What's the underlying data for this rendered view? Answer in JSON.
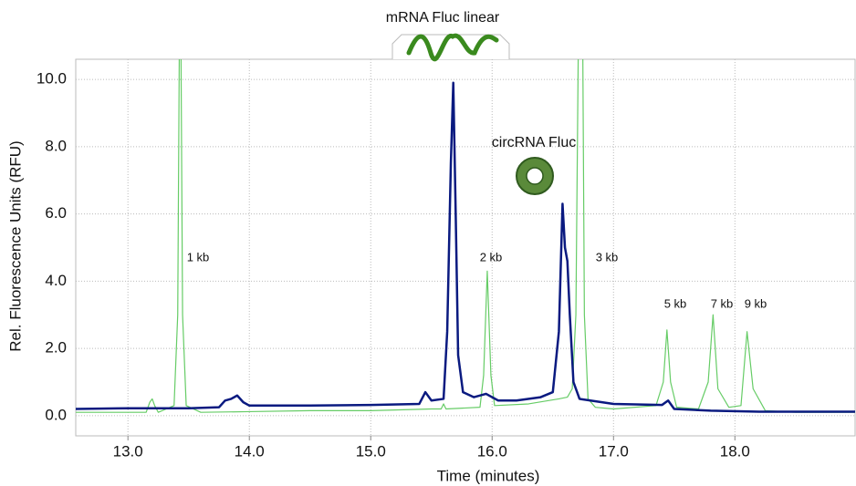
{
  "chart_data": {
    "type": "line",
    "xlabel": "Time (minutes)",
    "ylabel": "Rel. Fluorescence Units (RFU)",
    "xlim": [
      12.57,
      18.99
    ],
    "ylim": [
      -0.6,
      10.6
    ],
    "xticks": [
      {
        "value": 13,
        "label": "13.0"
      },
      {
        "value": 14,
        "label": "14.0"
      },
      {
        "value": 15,
        "label": "15.0"
      },
      {
        "value": 16,
        "label": "16.0"
      },
      {
        "value": 17,
        "label": "17.0"
      },
      {
        "value": 18,
        "label": "18.0"
      }
    ],
    "yticks": [
      {
        "value": 0,
        "label": "0.0"
      },
      {
        "value": 2,
        "label": "2.0"
      },
      {
        "value": 4,
        "label": "4.0"
      },
      {
        "value": 6,
        "label": "6.0"
      },
      {
        "value": 8,
        "label": "8.0"
      },
      {
        "value": 10,
        "label": "10.0"
      }
    ],
    "grid": true,
    "annotations": [
      "mRNA Fluc linear",
      "circRNA Fluc",
      "1 kb",
      "2 kb",
      "3 kb",
      "5 kb",
      "7 kb",
      "9 kb"
    ],
    "series": [
      {
        "color": "#66cc66",
        "x": [
          12.57,
          13.15,
          13.18,
          13.2,
          13.22,
          13.25,
          13.38,
          13.41,
          13.43,
          13.45,
          13.48,
          13.6,
          14.0,
          14.5,
          15.0,
          15.5,
          15.58,
          15.6,
          15.62,
          15.9,
          15.93,
          15.96,
          15.99,
          16.02,
          16.3,
          16.55,
          16.62,
          16.66,
          16.69,
          16.72,
          16.74,
          16.76,
          16.79,
          16.85,
          17.0,
          17.35,
          17.41,
          17.44,
          17.47,
          17.52,
          17.7,
          17.78,
          17.82,
          17.86,
          17.95,
          18.05,
          18.1,
          18.15,
          18.25,
          18.5,
          18.99
        ],
        "values": [
          0.1,
          0.1,
          0.4,
          0.5,
          0.3,
          0.1,
          0.3,
          3,
          15,
          3,
          0.3,
          0.1,
          0.12,
          0.15,
          0.15,
          0.2,
          0.2,
          0.35,
          0.2,
          0.25,
          1.2,
          4.3,
          1.2,
          0.3,
          0.35,
          0.5,
          0.55,
          0.8,
          3,
          15,
          15,
          3,
          0.5,
          0.25,
          0.2,
          0.3,
          1.0,
          2.55,
          1.0,
          0.25,
          0.2,
          1.0,
          3.0,
          0.8,
          0.25,
          0.3,
          2.5,
          0.8,
          0.15,
          0.1,
          0.1
        ]
      },
      {
        "color": "#0a1a80",
        "x": [
          12.57,
          13.0,
          13.5,
          13.75,
          13.8,
          13.85,
          13.9,
          13.95,
          14.0,
          14.5,
          15.0,
          15.4,
          15.45,
          15.5,
          15.6,
          15.63,
          15.66,
          15.68,
          15.7,
          15.72,
          15.76,
          15.85,
          15.95,
          16.05,
          16.2,
          16.4,
          16.5,
          16.55,
          16.58,
          16.6,
          16.62,
          16.64,
          16.67,
          16.72,
          17.0,
          17.4,
          17.45,
          17.5,
          17.8,
          18.2,
          18.99
        ],
        "values": [
          0.2,
          0.22,
          0.22,
          0.25,
          0.45,
          0.5,
          0.6,
          0.4,
          0.3,
          0.3,
          0.32,
          0.35,
          0.7,
          0.45,
          0.5,
          2.5,
          7.5,
          9.9,
          6.0,
          1.8,
          0.7,
          0.55,
          0.65,
          0.45,
          0.45,
          0.55,
          0.7,
          2.5,
          6.3,
          5.0,
          4.6,
          3.0,
          1.0,
          0.5,
          0.35,
          0.32,
          0.45,
          0.2,
          0.15,
          0.12,
          0.12
        ]
      }
    ]
  }
}
